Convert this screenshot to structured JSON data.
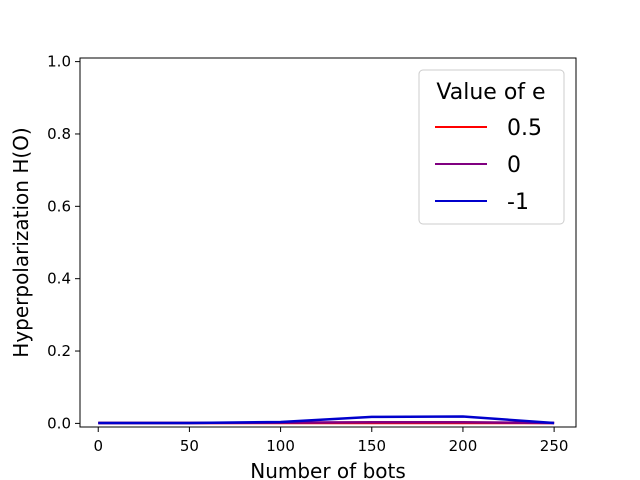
{
  "chart_data": {
    "type": "line",
    "title": "",
    "xlabel": "Number of bots",
    "ylabel": "Hyperpolarization H(O)",
    "x": [
      0,
      50,
      100,
      150,
      200,
      250
    ],
    "xticks": [
      "0",
      "50",
      "100",
      "150",
      "200",
      "250"
    ],
    "yticks": [
      "0.0",
      "0.2",
      "0.4",
      "0.6",
      "0.8",
      "1.0"
    ],
    "xlim": [
      -10,
      262
    ],
    "ylim": [
      -0.01,
      1.01
    ],
    "grid": false,
    "legend": {
      "title": "Value of e",
      "placement": "top-right"
    },
    "series": [
      {
        "name": "0.5",
        "color": "#ff0000",
        "values": [
          0.001,
          0.001,
          0.001,
          0.001,
          0.001,
          0.001
        ]
      },
      {
        "name": "0",
        "color": "#800080",
        "values": [
          0.001,
          0.001,
          0.002,
          0.003,
          0.003,
          0.001
        ]
      },
      {
        "name": "-1",
        "color": "#0000cc",
        "values": [
          0.001,
          0.001,
          0.004,
          0.018,
          0.019,
          0.001
        ]
      }
    ]
  }
}
